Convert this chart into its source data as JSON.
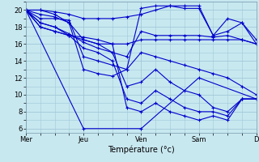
{
  "background_color": "#c8e8f0",
  "grid_color": "#a0c8d8",
  "line_color": "#0000cc",
  "marker": "+",
  "xlabel": "Température (°c)",
  "xlim": [
    0,
    96
  ],
  "ylim": [
    5.5,
    21.0
  ],
  "yticks": [
    6,
    8,
    10,
    12,
    14,
    16,
    18,
    20
  ],
  "yticks_minor": [
    6,
    7,
    8,
    9,
    10,
    11,
    12,
    13,
    14,
    15,
    16,
    17,
    18,
    19,
    20,
    21
  ],
  "xtick_positions": [
    0,
    24,
    48,
    72,
    96
  ],
  "xtick_labels": [
    "Mer",
    "Jeu",
    "Ven",
    "Sam",
    "D"
  ],
  "xticks_minor": [
    0,
    6,
    12,
    18,
    24,
    30,
    36,
    42,
    48,
    54,
    60,
    66,
    72,
    78,
    84,
    90,
    96
  ],
  "series": [
    [
      0,
      20,
      6,
      20,
      12,
      19.5,
      18,
      18.5,
      24,
      13,
      30,
      12.5,
      36,
      12.2,
      42,
      13,
      48,
      20.2,
      54,
      20.5,
      60,
      20.5,
      66,
      20.2,
      72,
      20.2,
      78,
      17,
      84,
      17.5,
      90,
      18.5,
      96,
      16
    ],
    [
      0,
      20,
      6,
      19.5,
      12,
      19.2,
      18,
      18.5,
      24,
      16.5,
      30,
      16,
      36,
      16,
      42,
      16,
      48,
      16.5,
      54,
      16.5,
      60,
      16.5,
      66,
      16.5,
      72,
      16.5,
      78,
      16.5,
      84,
      16.5,
      90,
      16.5,
      96,
      16
    ],
    [
      0,
      20,
      6,
      18.5,
      12,
      18,
      18,
      17.2,
      24,
      16.2,
      30,
      15.5,
      36,
      15,
      42,
      14.5,
      48,
      17.5,
      54,
      17,
      60,
      17,
      66,
      17,
      72,
      17,
      78,
      16.8,
      84,
      17,
      90,
      16.5,
      96,
      16
    ],
    [
      0,
      20,
      6,
      19,
      12,
      19,
      18,
      18.8,
      24,
      14.5,
      30,
      14,
      36,
      13.5,
      42,
      13,
      48,
      15,
      54,
      14.5,
      60,
      14,
      66,
      13.5,
      72,
      13,
      78,
      12.5,
      84,
      12,
      90,
      11,
      96,
      10
    ],
    [
      0,
      20,
      6,
      18,
      12,
      17.5,
      18,
      17,
      24,
      16.5,
      30,
      16,
      36,
      15,
      42,
      11,
      48,
      11.5,
      54,
      13,
      60,
      11.5,
      66,
      10.5,
      72,
      10,
      78,
      8.5,
      84,
      8,
      90,
      9.5,
      96,
      9.5
    ],
    [
      0,
      20,
      6,
      18.5,
      12,
      18,
      18,
      17,
      24,
      15.5,
      30,
      15,
      36,
      14,
      42,
      9.5,
      48,
      9,
      54,
      10.5,
      60,
      9.5,
      66,
      8.5,
      72,
      8,
      78,
      8,
      84,
      7.5,
      90,
      9.5,
      96,
      9.5
    ],
    [
      0,
      20,
      6,
      18,
      12,
      17.5,
      18,
      17,
      24,
      16.8,
      30,
      16.5,
      36,
      16,
      42,
      8.5,
      48,
      8,
      54,
      9,
      60,
      8,
      66,
      7.5,
      72,
      7,
      78,
      7.5,
      84,
      7,
      90,
      9.5,
      96,
      9.5
    ],
    [
      0,
      20,
      6,
      20,
      12,
      19.8,
      18,
      19.5,
      24,
      19,
      30,
      19,
      36,
      19,
      42,
      19.2,
      48,
      19.5,
      54,
      20,
      60,
      20.5,
      66,
      20.5,
      72,
      20.5,
      78,
      17,
      84,
      19,
      90,
      18.5,
      96,
      16.5
    ],
    [
      0,
      20,
      24,
      6,
      48,
      6,
      72,
      12,
      96,
      9.5
    ]
  ]
}
